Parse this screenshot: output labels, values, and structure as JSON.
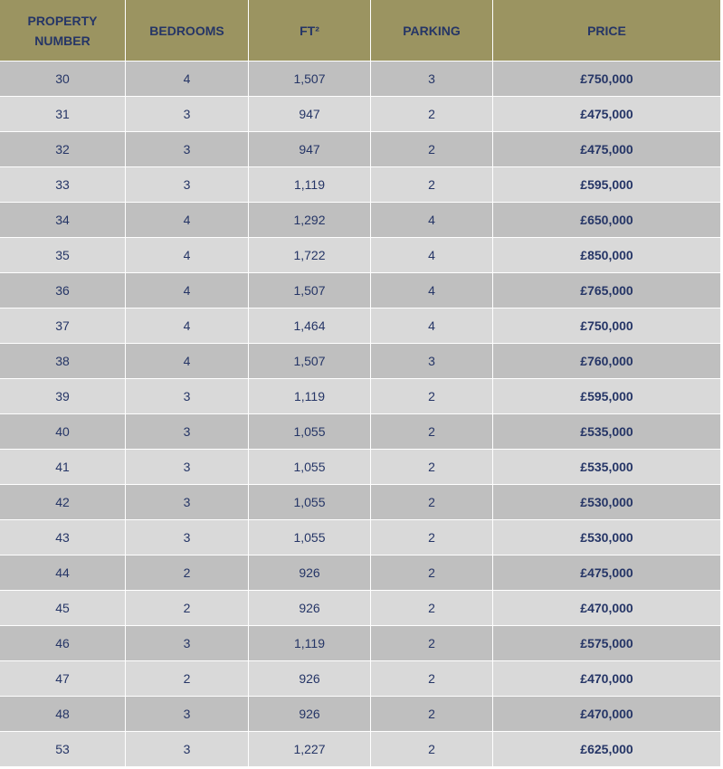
{
  "table": {
    "headers": [
      "PROPERTY NUMBER",
      "BEDROOMS",
      "FT²",
      "PARKING",
      "PRICE"
    ],
    "rows": [
      [
        "30",
        "4",
        "1,507",
        "3",
        "£750,000"
      ],
      [
        "31",
        "3",
        "947",
        "2",
        "£475,000"
      ],
      [
        "32",
        "3",
        "947",
        "2",
        "£475,000"
      ],
      [
        "33",
        "3",
        "1,119",
        "2",
        "£595,000"
      ],
      [
        "34",
        "4",
        "1,292",
        "4",
        "£650,000"
      ],
      [
        "35",
        "4",
        "1,722",
        "4",
        "£850,000"
      ],
      [
        "36",
        "4",
        "1,507",
        "4",
        "£765,000"
      ],
      [
        "37",
        "4",
        "1,464",
        "4",
        "£750,000"
      ],
      [
        "38",
        "4",
        "1,507",
        "3",
        "£760,000"
      ],
      [
        "39",
        "3",
        "1,119",
        "2",
        "£595,000"
      ],
      [
        "40",
        "3",
        "1,055",
        "2",
        "£535,000"
      ],
      [
        "41",
        "3",
        "1,055",
        "2",
        "£535,000"
      ],
      [
        "42",
        "3",
        "1,055",
        "2",
        "£530,000"
      ],
      [
        "43",
        "3",
        "1,055",
        "2",
        "£530,000"
      ],
      [
        "44",
        "2",
        "926",
        "2",
        "£475,000"
      ],
      [
        "45",
        "2",
        "926",
        "2",
        "£470,000"
      ],
      [
        "46",
        "3",
        "1,119",
        "2",
        "£575,000"
      ],
      [
        "47",
        "2",
        "926",
        "2",
        "£470,000"
      ],
      [
        "48",
        "3",
        "926",
        "2",
        "£470,000"
      ],
      [
        "53",
        "3",
        "1,227",
        "2",
        "£625,000"
      ]
    ]
  }
}
